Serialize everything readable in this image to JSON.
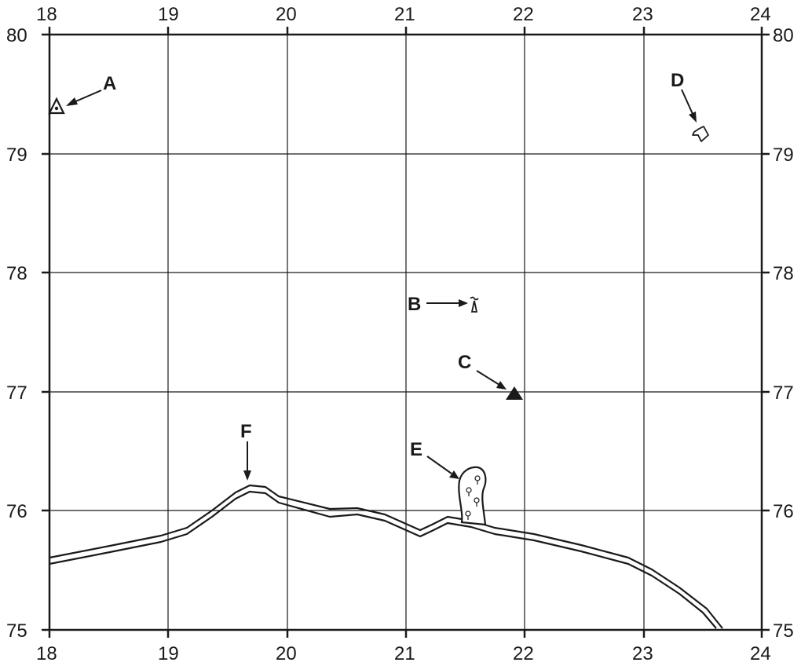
{
  "map": {
    "x_ticks": [
      "18",
      "19",
      "20",
      "21",
      "22",
      "23",
      "24"
    ],
    "y_ticks": [
      "80",
      "79",
      "78",
      "77",
      "76",
      "75"
    ],
    "features": [
      {
        "label": "A",
        "symbol": "triangulation-point-icon"
      },
      {
        "label": "B",
        "symbol": "radio-mast-icon"
      },
      {
        "label": "C",
        "symbol": "spot-summit-triangle-icon"
      },
      {
        "label": "D",
        "symbol": "church-icon"
      },
      {
        "label": "E",
        "symbol": "coniferous-woodland-icon"
      },
      {
        "label": "F",
        "symbol": "coastline-double-line"
      }
    ]
  }
}
